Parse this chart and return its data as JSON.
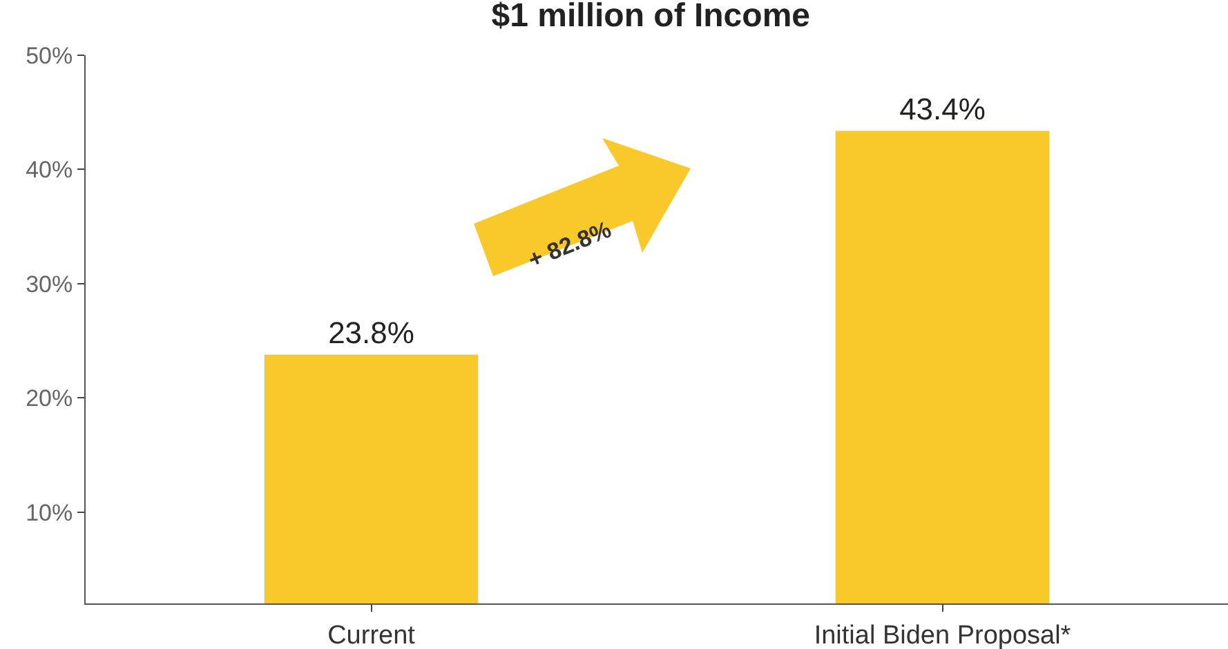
{
  "chart_data": {
    "type": "bar",
    "title": "$1 million of Income",
    "categories": [
      "Current",
      "Initial Biden Proposal*"
    ],
    "values": [
      23.8,
      43.4
    ],
    "color": "#f9c82b",
    "value_labels": [
      "23.8%",
      "43.4%"
    ],
    "ylim": [
      2,
      50
    ],
    "yticks": [
      {
        "value": 10,
        "label": "10%"
      },
      {
        "value": 20,
        "label": "20%"
      },
      {
        "value": 30,
        "label": "30%"
      },
      {
        "value": 40,
        "label": "40%"
      },
      {
        "value": 50,
        "label": "50%"
      }
    ],
    "grid": false,
    "legend": false,
    "annotations": [
      "+ 82.8%"
    ]
  }
}
